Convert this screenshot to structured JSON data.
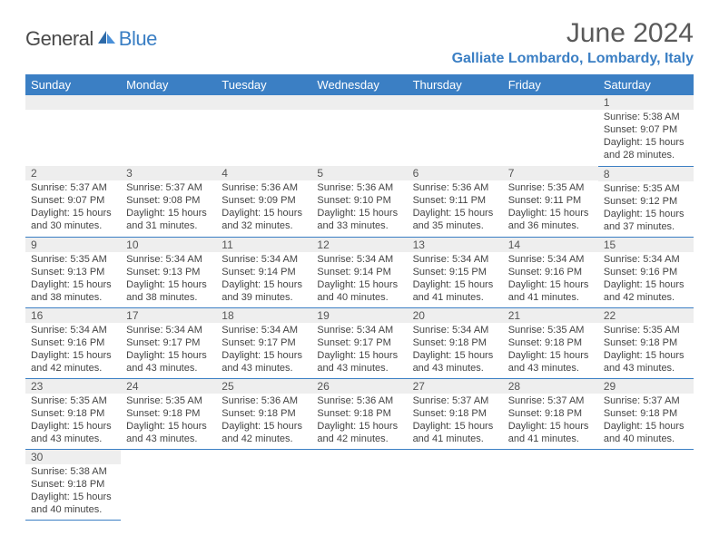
{
  "logo": {
    "text_dark": "General",
    "text_blue": "Blue"
  },
  "header": {
    "month_title": "June 2024",
    "location": "Galliate Lombardo, Lombardy, Italy"
  },
  "colors": {
    "brand_blue": "#3b7fc4",
    "header_gray": "#eeeeee",
    "text_gray": "#5a5a5a",
    "border_blue": "#3b7fc4",
    "background": "#ffffff"
  },
  "days_of_week": [
    "Sunday",
    "Monday",
    "Tuesday",
    "Wednesday",
    "Thursday",
    "Friday",
    "Saturday"
  ],
  "weeks": [
    [
      null,
      null,
      null,
      null,
      null,
      null,
      {
        "n": "1",
        "sunrise": "Sunrise: 5:38 AM",
        "sunset": "Sunset: 9:07 PM",
        "daylight": "Daylight: 15 hours and 28 minutes."
      }
    ],
    [
      {
        "n": "2",
        "sunrise": "Sunrise: 5:37 AM",
        "sunset": "Sunset: 9:07 PM",
        "daylight": "Daylight: 15 hours and 30 minutes."
      },
      {
        "n": "3",
        "sunrise": "Sunrise: 5:37 AM",
        "sunset": "Sunset: 9:08 PM",
        "daylight": "Daylight: 15 hours and 31 minutes."
      },
      {
        "n": "4",
        "sunrise": "Sunrise: 5:36 AM",
        "sunset": "Sunset: 9:09 PM",
        "daylight": "Daylight: 15 hours and 32 minutes."
      },
      {
        "n": "5",
        "sunrise": "Sunrise: 5:36 AM",
        "sunset": "Sunset: 9:10 PM",
        "daylight": "Daylight: 15 hours and 33 minutes."
      },
      {
        "n": "6",
        "sunrise": "Sunrise: 5:36 AM",
        "sunset": "Sunset: 9:11 PM",
        "daylight": "Daylight: 15 hours and 35 minutes."
      },
      {
        "n": "7",
        "sunrise": "Sunrise: 5:35 AM",
        "sunset": "Sunset: 9:11 PM",
        "daylight": "Daylight: 15 hours and 36 minutes."
      },
      {
        "n": "8",
        "sunrise": "Sunrise: 5:35 AM",
        "sunset": "Sunset: 9:12 PM",
        "daylight": "Daylight: 15 hours and 37 minutes."
      }
    ],
    [
      {
        "n": "9",
        "sunrise": "Sunrise: 5:35 AM",
        "sunset": "Sunset: 9:13 PM",
        "daylight": "Daylight: 15 hours and 38 minutes."
      },
      {
        "n": "10",
        "sunrise": "Sunrise: 5:34 AM",
        "sunset": "Sunset: 9:13 PM",
        "daylight": "Daylight: 15 hours and 38 minutes."
      },
      {
        "n": "11",
        "sunrise": "Sunrise: 5:34 AM",
        "sunset": "Sunset: 9:14 PM",
        "daylight": "Daylight: 15 hours and 39 minutes."
      },
      {
        "n": "12",
        "sunrise": "Sunrise: 5:34 AM",
        "sunset": "Sunset: 9:14 PM",
        "daylight": "Daylight: 15 hours and 40 minutes."
      },
      {
        "n": "13",
        "sunrise": "Sunrise: 5:34 AM",
        "sunset": "Sunset: 9:15 PM",
        "daylight": "Daylight: 15 hours and 41 minutes."
      },
      {
        "n": "14",
        "sunrise": "Sunrise: 5:34 AM",
        "sunset": "Sunset: 9:16 PM",
        "daylight": "Daylight: 15 hours and 41 minutes."
      },
      {
        "n": "15",
        "sunrise": "Sunrise: 5:34 AM",
        "sunset": "Sunset: 9:16 PM",
        "daylight": "Daylight: 15 hours and 42 minutes."
      }
    ],
    [
      {
        "n": "16",
        "sunrise": "Sunrise: 5:34 AM",
        "sunset": "Sunset: 9:16 PM",
        "daylight": "Daylight: 15 hours and 42 minutes."
      },
      {
        "n": "17",
        "sunrise": "Sunrise: 5:34 AM",
        "sunset": "Sunset: 9:17 PM",
        "daylight": "Daylight: 15 hours and 43 minutes."
      },
      {
        "n": "18",
        "sunrise": "Sunrise: 5:34 AM",
        "sunset": "Sunset: 9:17 PM",
        "daylight": "Daylight: 15 hours and 43 minutes."
      },
      {
        "n": "19",
        "sunrise": "Sunrise: 5:34 AM",
        "sunset": "Sunset: 9:17 PM",
        "daylight": "Daylight: 15 hours and 43 minutes."
      },
      {
        "n": "20",
        "sunrise": "Sunrise: 5:34 AM",
        "sunset": "Sunset: 9:18 PM",
        "daylight": "Daylight: 15 hours and 43 minutes."
      },
      {
        "n": "21",
        "sunrise": "Sunrise: 5:35 AM",
        "sunset": "Sunset: 9:18 PM",
        "daylight": "Daylight: 15 hours and 43 minutes."
      },
      {
        "n": "22",
        "sunrise": "Sunrise: 5:35 AM",
        "sunset": "Sunset: 9:18 PM",
        "daylight": "Daylight: 15 hours and 43 minutes."
      }
    ],
    [
      {
        "n": "23",
        "sunrise": "Sunrise: 5:35 AM",
        "sunset": "Sunset: 9:18 PM",
        "daylight": "Daylight: 15 hours and 43 minutes."
      },
      {
        "n": "24",
        "sunrise": "Sunrise: 5:35 AM",
        "sunset": "Sunset: 9:18 PM",
        "daylight": "Daylight: 15 hours and 43 minutes."
      },
      {
        "n": "25",
        "sunrise": "Sunrise: 5:36 AM",
        "sunset": "Sunset: 9:18 PM",
        "daylight": "Daylight: 15 hours and 42 minutes."
      },
      {
        "n": "26",
        "sunrise": "Sunrise: 5:36 AM",
        "sunset": "Sunset: 9:18 PM",
        "daylight": "Daylight: 15 hours and 42 minutes."
      },
      {
        "n": "27",
        "sunrise": "Sunrise: 5:37 AM",
        "sunset": "Sunset: 9:18 PM",
        "daylight": "Daylight: 15 hours and 41 minutes."
      },
      {
        "n": "28",
        "sunrise": "Sunrise: 5:37 AM",
        "sunset": "Sunset: 9:18 PM",
        "daylight": "Daylight: 15 hours and 41 minutes."
      },
      {
        "n": "29",
        "sunrise": "Sunrise: 5:37 AM",
        "sunset": "Sunset: 9:18 PM",
        "daylight": "Daylight: 15 hours and 40 minutes."
      }
    ],
    [
      {
        "n": "30",
        "sunrise": "Sunrise: 5:38 AM",
        "sunset": "Sunset: 9:18 PM",
        "daylight": "Daylight: 15 hours and 40 minutes."
      },
      null,
      null,
      null,
      null,
      null,
      null
    ]
  ]
}
